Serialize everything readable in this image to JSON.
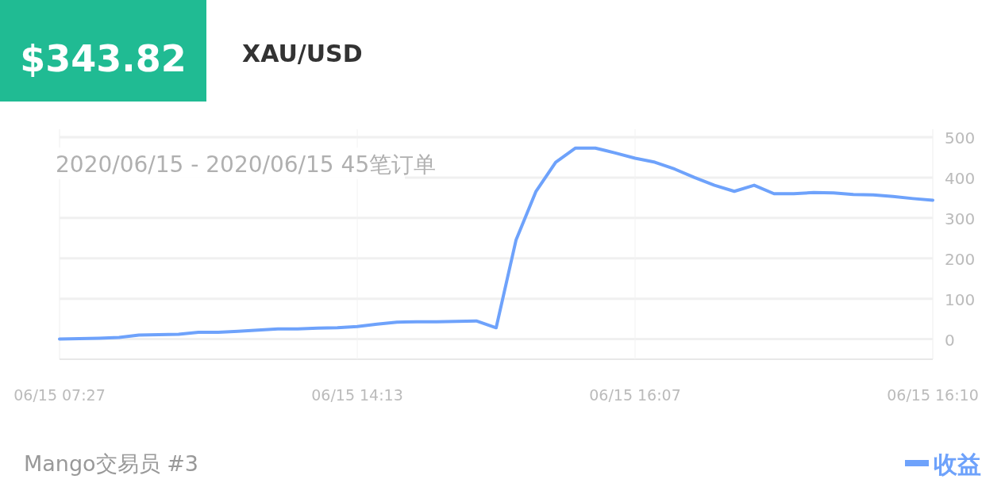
{
  "chart_data": {
    "type": "line",
    "title": "$343.82",
    "subtitle": "XAU/USD",
    "annotations": [
      "2020/06/15 - 2020/06/15  45笔订单",
      "Mango交易员 #3"
    ],
    "categories": [
      "06/15 07:27",
      null,
      null,
      null,
      null,
      null,
      null,
      null,
      null,
      null,
      null,
      null,
      null,
      null,
      null,
      "06/15 14:13",
      null,
      null,
      null,
      null,
      null,
      null,
      null,
      null,
      null,
      null,
      null,
      null,
      null,
      "06/15 16:07",
      null,
      null,
      null,
      null,
      null,
      null,
      null,
      null,
      null,
      null,
      null,
      null,
      null,
      null,
      "06/15 16:10"
    ],
    "series": [
      {
        "name": "收益",
        "color": "#6ea2fb",
        "values": [
          0,
          1,
          2,
          4,
          10,
          11,
          12,
          17,
          17,
          19,
          22,
          25,
          25,
          27,
          28,
          31,
          37,
          42,
          43,
          43,
          44,
          45,
          28,
          245,
          365,
          438,
          473,
          473,
          461,
          448,
          438,
          421,
          400,
          381,
          366,
          381,
          360,
          360,
          363,
          362,
          358,
          357,
          353,
          348,
          344
        ]
      }
    ],
    "ylim": [
      -50,
      500
    ],
    "yticks": [
      0,
      100,
      200,
      300,
      400,
      500
    ],
    "grid": true,
    "legend": "bottom right",
    "marker": "none",
    "line_style": "solid"
  }
}
